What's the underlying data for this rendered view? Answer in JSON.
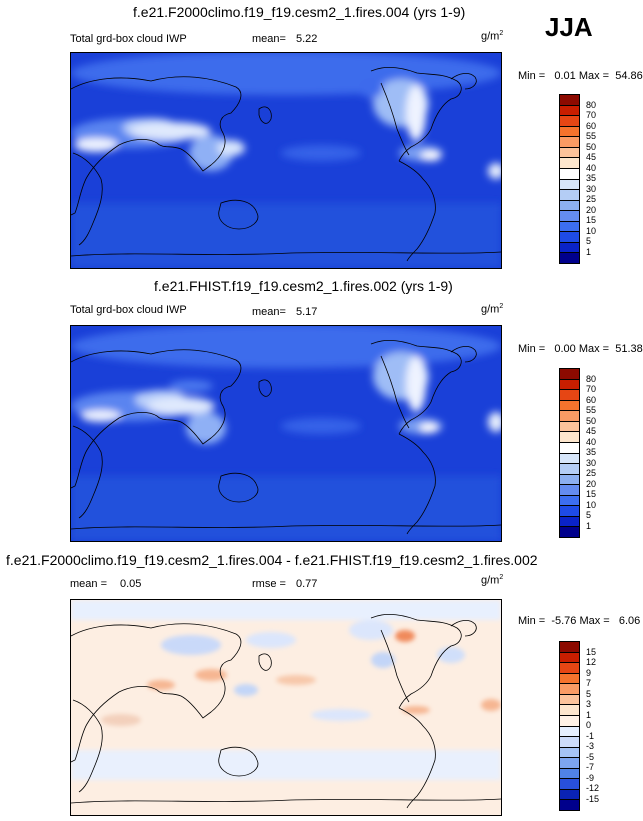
{
  "season": "JJA",
  "panels": [
    {
      "title": "f.e21.F2000climo.f19_f19.cesm2_1.fires.004 (yrs 1-9)",
      "left_label": "Total grd-box cloud IWP",
      "stat1_label": "mean=",
      "stat1_value": "5.22",
      "units_base": "g/m",
      "units_exp": "2",
      "min_max": "Min =   0.01 Max =  54.86",
      "colorbar_labels": [
        "80",
        "70",
        "60",
        "55",
        "50",
        "45",
        "40",
        "35",
        "30",
        "25",
        "20",
        "15",
        "10",
        "5",
        "1"
      ],
      "colorbar_colors": [
        "#8c0a00",
        "#c81e00",
        "#e64614",
        "#f5732d",
        "#fa9b64",
        "#fcc39b",
        "#fde6cd",
        "#ffffff",
        "#d7e6fa",
        "#b4cdf5",
        "#8caff0",
        "#648cf0",
        "#3c6ef0",
        "#1e4be6",
        "#0a23c8",
        "#00008c"
      ]
    },
    {
      "title": "f.e21.FHIST.f19_f19.cesm2_1.fires.002 (yrs 1-9)",
      "left_label": "Total grd-box cloud IWP",
      "stat1_label": "mean=",
      "stat1_value": "5.17",
      "units_base": "g/m",
      "units_exp": "2",
      "min_max": "Min =   0.00 Max =  51.38",
      "colorbar_labels": [
        "80",
        "70",
        "60",
        "55",
        "50",
        "45",
        "40",
        "35",
        "30",
        "25",
        "20",
        "15",
        "10",
        "5",
        "1"
      ],
      "colorbar_colors": [
        "#8c0a00",
        "#c81e00",
        "#e64614",
        "#f5732d",
        "#fa9b64",
        "#fcc39b",
        "#fde6cd",
        "#ffffff",
        "#d7e6fa",
        "#b4cdf5",
        "#8caff0",
        "#648cf0",
        "#3c6ef0",
        "#1e4be6",
        "#0a23c8",
        "#00008c"
      ]
    },
    {
      "title": "f.e21.F2000climo.f19_f19.cesm2_1.fires.004 - f.e21.FHIST.f19_f19.cesm2_1.fires.002",
      "stat1_label": "mean =",
      "stat1_value": "0.05",
      "stat2_label": "rmse =",
      "stat2_value": "0.77",
      "units_base": "g/m",
      "units_exp": "2",
      "min_max": "Min =  -5.76 Max =   6.06",
      "colorbar_labels": [
        "15",
        "12",
        "9",
        "7",
        "5",
        "3",
        "1",
        "0",
        "-1",
        "-3",
        "-5",
        "-7",
        "-9",
        "-12",
        "-15"
      ],
      "colorbar_colors": [
        "#8c0a00",
        "#c81e00",
        "#e64614",
        "#f5732d",
        "#fa9b64",
        "#fcc39b",
        "#fde6cd",
        "#fff2e6",
        "#e6f0ff",
        "#cddcfa",
        "#a5c3f5",
        "#7da5f0",
        "#5082e6",
        "#2850dc",
        "#0a23b4",
        "#00008c"
      ]
    }
  ]
}
